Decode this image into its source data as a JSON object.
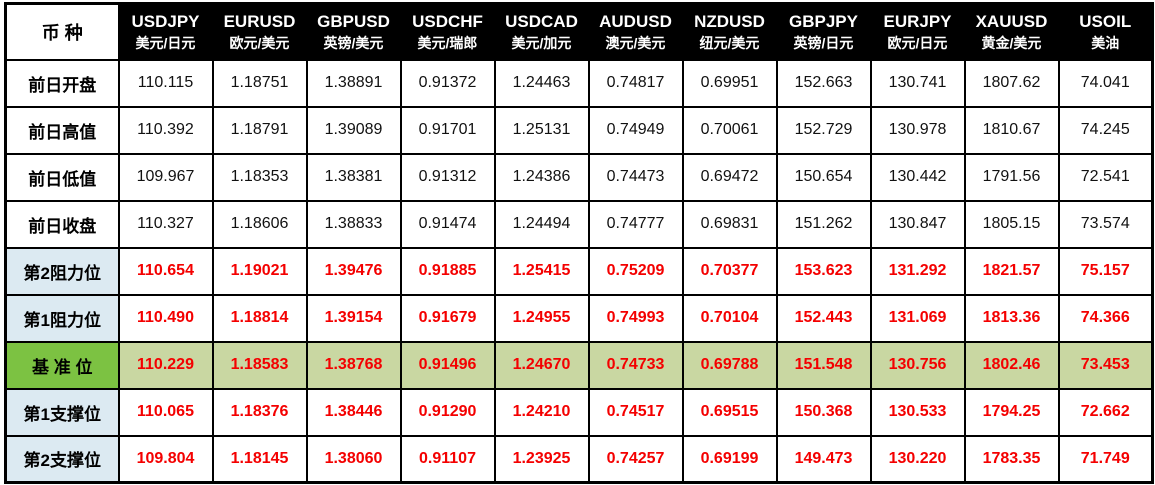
{
  "colors": {
    "header_bg": "#000000",
    "header_text": "#ffffff",
    "grid": "#000000",
    "label_blue": "#DCEAF2",
    "pivot_green": "#7CC242",
    "pivot_row_bg": "#C9D7A2",
    "value_red": "#F40000"
  },
  "table": {
    "corner_label": "币 种",
    "columns": [
      {
        "symbol": "USDJPY",
        "pair": "美元/日元"
      },
      {
        "symbol": "EURUSD",
        "pair": "欧元/美元"
      },
      {
        "symbol": "GBPUSD",
        "pair": "英镑/美元"
      },
      {
        "symbol": "USDCHF",
        "pair": "美元/瑞郎"
      },
      {
        "symbol": "USDCAD",
        "pair": "美元/加元"
      },
      {
        "symbol": "AUDUSD",
        "pair": "澳元/美元"
      },
      {
        "symbol": "NZDUSD",
        "pair": "纽元/美元"
      },
      {
        "symbol": "GBPJPY",
        "pair": "英镑/日元"
      },
      {
        "symbol": "EURJPY",
        "pair": "欧元/日元"
      },
      {
        "symbol": "XAUUSD",
        "pair": "黄金/美元"
      },
      {
        "symbol": "USOIL",
        "pair": "美油"
      }
    ],
    "rows": [
      {
        "key": "prev-open",
        "label": "前日开盘",
        "type": "prev",
        "values": [
          "110.115",
          "1.18751",
          "1.38891",
          "0.91372",
          "1.24463",
          "0.74817",
          "0.69951",
          "152.663",
          "130.741",
          "1807.62",
          "74.041"
        ]
      },
      {
        "key": "prev-high",
        "label": "前日高值",
        "type": "prev",
        "values": [
          "110.392",
          "1.18791",
          "1.39089",
          "0.91701",
          "1.25131",
          "0.74949",
          "0.70061",
          "152.729",
          "130.978",
          "1810.67",
          "74.245"
        ]
      },
      {
        "key": "prev-low",
        "label": "前日低值",
        "type": "prev",
        "values": [
          "109.967",
          "1.18353",
          "1.38381",
          "0.91312",
          "1.24386",
          "0.74473",
          "0.69472",
          "150.654",
          "130.442",
          "1791.56",
          "72.541"
        ]
      },
      {
        "key": "prev-close",
        "label": "前日收盘",
        "type": "prev",
        "values": [
          "110.327",
          "1.18606",
          "1.38833",
          "0.91474",
          "1.24494",
          "0.74777",
          "0.69831",
          "151.262",
          "130.847",
          "1805.15",
          "73.574"
        ]
      },
      {
        "key": "resistance-2",
        "label": "第2阻力位",
        "type": "resistance",
        "values": [
          "110.654",
          "1.19021",
          "1.39476",
          "0.91885",
          "1.25415",
          "0.75209",
          "0.70377",
          "153.623",
          "131.292",
          "1821.57",
          "75.157"
        ]
      },
      {
        "key": "resistance-1",
        "label": "第1阻力位",
        "type": "resistance",
        "values": [
          "110.490",
          "1.18814",
          "1.39154",
          "0.91679",
          "1.24955",
          "0.74993",
          "0.70104",
          "152.443",
          "131.069",
          "1813.36",
          "74.366"
        ]
      },
      {
        "key": "pivot-base",
        "label": "基 准 位",
        "type": "pivot",
        "values": [
          "110.229",
          "1.18583",
          "1.38768",
          "0.91496",
          "1.24670",
          "0.74733",
          "0.69788",
          "151.548",
          "130.756",
          "1802.46",
          "73.453"
        ]
      },
      {
        "key": "support-1",
        "label": "第1支撑位",
        "type": "support",
        "values": [
          "110.065",
          "1.18376",
          "1.38446",
          "0.91290",
          "1.24210",
          "0.74517",
          "0.69515",
          "150.368",
          "130.533",
          "1794.25",
          "72.662"
        ]
      },
      {
        "key": "support-2",
        "label": "第2支撑位",
        "type": "support",
        "values": [
          "109.804",
          "1.18145",
          "1.38060",
          "0.91107",
          "1.23925",
          "0.74257",
          "0.69199",
          "149.473",
          "130.220",
          "1783.35",
          "71.749"
        ]
      }
    ]
  }
}
